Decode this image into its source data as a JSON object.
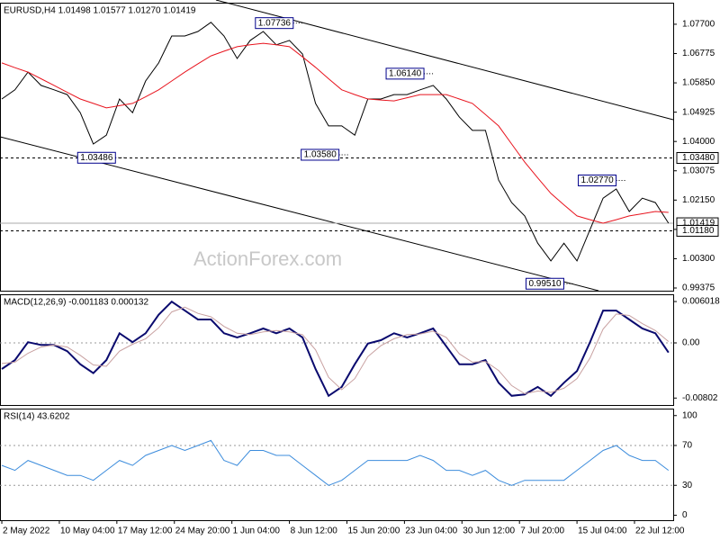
{
  "chart_data": [
    {
      "type": "line",
      "title": "EURUSD,H4  1.01498 1.01577 1.01270 1.01419",
      "watermark": "ActionForex.com",
      "x": [
        0,
        10,
        20,
        30,
        40,
        50,
        60,
        70,
        80,
        90,
        100,
        110,
        120,
        130,
        140,
        150,
        160,
        170,
        180,
        190,
        200,
        210,
        220,
        230,
        240,
        250,
        260,
        270,
        280,
        290,
        300,
        310,
        320,
        330,
        340,
        350,
        360,
        370,
        380,
        390,
        400,
        410,
        420,
        430,
        440,
        450,
        460,
        470,
        480,
        490,
        500,
        510
      ],
      "series": [
        {
          "color": "#000000",
          "values": [
            1.0534,
            1.0563,
            1.0619,
            1.0577,
            1.0563,
            1.0548,
            1.0491,
            1.0392,
            1.042,
            1.0534,
            1.0491,
            1.0591,
            1.0648,
            1.0733,
            1.0733,
            1.0747,
            1.0776,
            1.0733,
            1.0662,
            1.0719,
            1.0747,
            1.0705,
            1.0719,
            1.0676,
            1.052,
            1.0449,
            1.0449,
            1.042,
            1.0534,
            1.0534,
            1.0548,
            1.0548,
            1.0563,
            1.0577,
            1.0534,
            1.0477,
            1.0435,
            1.0435,
            1.0278,
            1.0207,
            1.0165,
            1.0079,
            1.0023,
            1.0079,
            1.0023,
            1.0122,
            1.0221,
            1.025,
            1.0179,
            1.0221,
            1.0207,
            1.0142
          ]
        },
        {
          "color": "#e8141e",
          "values": [
            1.0648,
            1.0633,
            1.0619,
            1.0598,
            1.0577,
            1.0555,
            1.0534,
            1.052,
            1.0506,
            1.0513,
            1.052,
            1.0541,
            1.0563,
            1.0591,
            1.0619,
            1.0645,
            1.067,
            1.0685,
            1.0699,
            1.0705,
            1.071,
            1.0705,
            1.0699,
            1.0667,
            1.0634,
            1.0598,
            1.0563,
            1.0548,
            1.0534,
            1.0531,
            1.0528,
            1.0538,
            1.0548,
            1.0548,
            1.0548,
            1.0534,
            1.052,
            1.0485,
            1.0449,
            1.0392,
            1.0335,
            1.0285,
            1.0236,
            1.02,
            1.0165,
            1.0153,
            1.0142,
            1.0153,
            1.0165,
            1.0172,
            1.0179,
            1.0176
          ]
        }
      ],
      "ylim": [
        0.9929,
        1.0838
      ],
      "yticks": [
        {
          "value": 1.077,
          "label": "1.07700"
        },
        {
          "value": 1.06775,
          "label": "1.06775"
        },
        {
          "value": 1.0585,
          "label": "1.05850"
        },
        {
          "value": 1.04925,
          "label": "1.04925"
        },
        {
          "value": 1.04,
          "label": "1.04000"
        },
        {
          "value": 1.03075,
          "label": "1.03075"
        },
        {
          "value": 1.0215,
          "label": "1.02150"
        },
        {
          "value": 1.01225,
          "label": "1.01225"
        },
        {
          "value": 1.003,
          "label": "1.00300"
        },
        {
          "value": 0.99375,
          "label": "0.99375"
        }
      ],
      "levels": [
        {
          "value": 1.0348,
          "label": "1.03480",
          "style": "dashed"
        },
        {
          "value": 1.01419,
          "label": "1.01419",
          "style": "solid"
        },
        {
          "value": 1.0118,
          "label": "1.01180",
          "style": "dashed"
        }
      ],
      "annotations": [
        {
          "value": 1.07736,
          "label": "1.07736",
          "x": 194
        },
        {
          "value": 1.0614,
          "label": "1.06140",
          "x": 294
        },
        {
          "value": 1.0358,
          "label": "1.03580",
          "x": 229
        },
        {
          "value": 1.03486,
          "label": "1.03486",
          "x": 58
        },
        {
          "value": 0.9951,
          "label": "0.99510",
          "x": 401
        },
        {
          "value": 1.0277,
          "label": "1.02770",
          "x": 441
        }
      ]
    },
    {
      "type": "line",
      "title": "MACD(12,26,9) -0.001183 0.000132",
      "series": [
        {
          "color": "#0a0a6e",
          "values": [
            -0.0038,
            -0.0025,
            0.0001,
            -0.0003,
            -0.0003,
            -0.0012,
            -0.0031,
            -0.0044,
            -0.0025,
            0.0014,
            0.0001,
            0.0014,
            0.0041,
            0.006,
            0.0047,
            0.0034,
            0.0034,
            0.0014,
            0.0008,
            0.0014,
            0.0021,
            0.0014,
            0.0021,
            0.0008,
            -0.0038,
            -0.0077,
            -0.0064,
            -0.0031,
            -0.0001,
            0.0004,
            0.0014,
            0.0008,
            0.0014,
            0.0021,
            -0.0005,
            -0.0031,
            -0.0031,
            -0.0025,
            -0.0058,
            -0.0077,
            -0.0075,
            -0.0064,
            -0.0077,
            -0.0058,
            -0.0041,
            0.0001,
            0.0047,
            0.0047,
            0.0034,
            0.0021,
            0.0014,
            -0.0014
          ]
        },
        {
          "color": "#c8a0a0",
          "values": [
            -0.003,
            -0.0028,
            -0.0015,
            -0.0006,
            -0.0003,
            -0.0006,
            -0.0018,
            -0.0032,
            -0.0034,
            -0.0012,
            -0.0002,
            0.0006,
            0.0022,
            0.0045,
            0.0052,
            0.0043,
            0.0038,
            0.0024,
            0.0014,
            0.0012,
            0.0016,
            0.0018,
            0.0016,
            0.0012,
            -0.001,
            -0.005,
            -0.0068,
            -0.0052,
            -0.002,
            -0.0004,
            0.0006,
            0.0012,
            0.0013,
            0.0017,
            0.0008,
            -0.0016,
            -0.0028,
            -0.0027,
            -0.004,
            -0.0062,
            -0.0074,
            -0.007,
            -0.0072,
            -0.0066,
            -0.0052,
            -0.0022,
            0.002,
            0.0042,
            0.004,
            0.0028,
            0.0018,
            0.0002
          ]
        }
      ],
      "ylim": [
        -0.00903,
        0.00707
      ],
      "yticks": [
        0.006018,
        {
          "value": 0,
          "label": "0.00"
        },
        -0.00802
      ],
      "hlines": [
        0
      ]
    },
    {
      "type": "line",
      "title": "RSI(14) 43.6202",
      "series": [
        {
          "color": "#3c8cdc",
          "values": [
            50,
            45,
            55,
            50,
            45,
            40,
            40,
            35,
            45,
            55,
            50,
            60,
            65,
            70,
            65,
            70,
            75,
            55,
            50,
            65,
            65,
            60,
            60,
            50,
            40,
            30,
            35,
            45,
            55,
            55,
            55,
            55,
            60,
            55,
            45,
            45,
            40,
            45,
            35,
            30,
            35,
            35,
            35,
            35,
            45,
            55,
            65,
            70,
            60,
            55,
            55,
            45
          ]
        }
      ],
      "ylim": [
        -5,
        107
      ],
      "yticks": [
        100,
        70,
        30,
        0
      ],
      "hlines": [
        70,
        30
      ],
      "xlim": [
        -1.4,
        513.6
      ],
      "xticks": [
        {
          "value": 0,
          "label": "2 May 2022"
        },
        {
          "value": 44,
          "label": "10 May 04:00"
        },
        {
          "value": 88,
          "label": "17 May 12:00"
        },
        {
          "value": 132,
          "label": "24 May 20:00"
        },
        {
          "value": 176,
          "label": "1 Jun 04:00"
        },
        {
          "value": 220,
          "label": "8 Jun 12:00"
        },
        {
          "value": 264,
          "label": "15 Jun 20:00"
        },
        {
          "value": 308,
          "label": "23 Jun 04:00"
        },
        {
          "value": 352,
          "label": "30 Jun 12:00"
        },
        {
          "value": 396,
          "label": "7 Jul 20:00"
        },
        {
          "value": 440,
          "label": "15 Jul 04:00"
        },
        {
          "value": 484,
          "label": "22 Jul 12:00"
        }
      ]
    }
  ]
}
